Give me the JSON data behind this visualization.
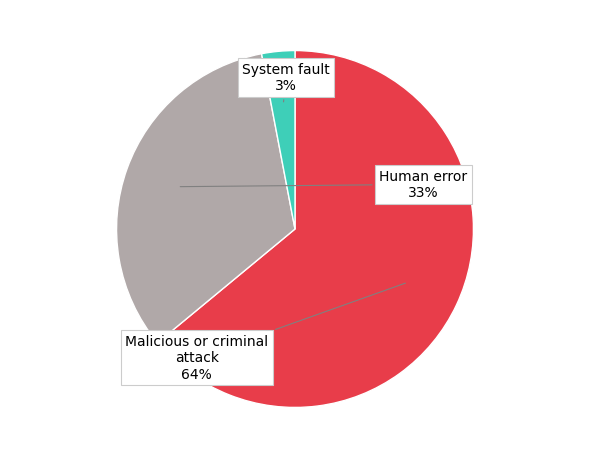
{
  "labels": [
    "Malicious or criminal\nattack\n64%",
    "Human error\n33%",
    "System fault\n3%"
  ],
  "label_texts": [
    "Malicious or criminal\nattack",
    "Human error",
    "System fault"
  ],
  "percentages": [
    64,
    33,
    3
  ],
  "values": [
    64,
    33,
    3
  ],
  "colors": [
    "#e83d4a",
    "#b0a8a8",
    "#3ecfb8"
  ],
  "startangle": 90,
  "background_color": "#ffffff",
  "annotation_fontsize": 10,
  "pct_fontsize": 10
}
